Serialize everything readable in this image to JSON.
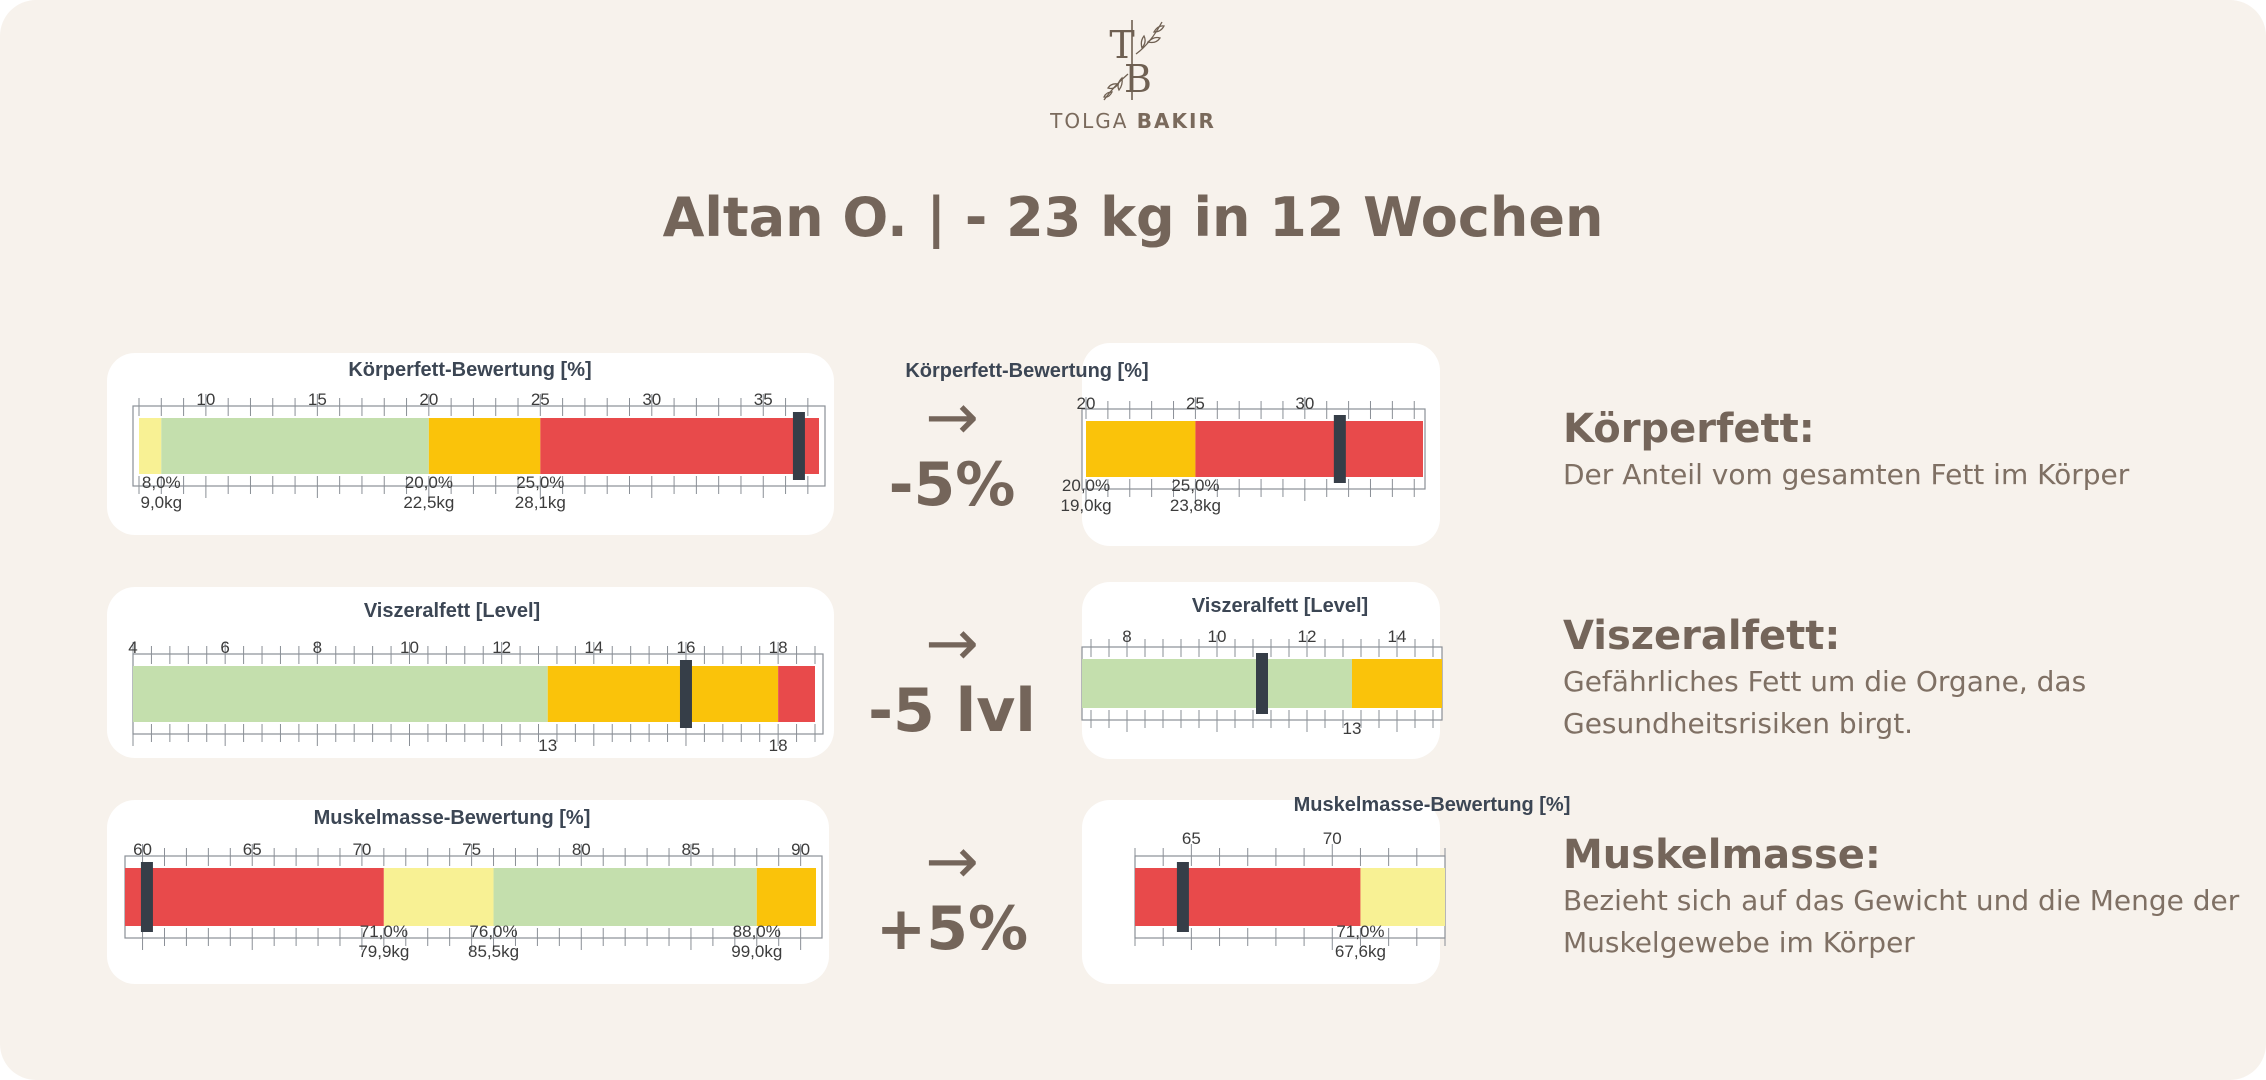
{
  "logo": {
    "monogram_1": "T",
    "monogram_2": "B",
    "name_first": "TOLGA",
    "name_last": "BAKIR"
  },
  "title": "Altan O. |  - 23 kg in 12 Wochen",
  "colors": {
    "background": "#f7f2ec",
    "text_brown": "#74655a",
    "light_yellow": "#f8f194",
    "light_green": "#c4dfad",
    "yellow": "#fac30a",
    "red": "#e84a4b",
    "marker": "#363e48"
  },
  "rows": [
    {
      "change": {
        "arrow": "→",
        "value": "-5%"
      },
      "description": {
        "heading": "Körperfett:",
        "text": "Der Anteil vom gesamten Fett im Körper"
      }
    },
    {
      "change": {
        "arrow": "→",
        "value": "-5 lvl"
      },
      "description": {
        "heading": "Viszeralfett:",
        "text": "Gefährliches Fett um die Organe, das Gesundheitsrisiken birgt."
      }
    },
    {
      "change": {
        "arrow": "→",
        "value": "+5%"
      },
      "description": {
        "heading": "Muskelmasse:",
        "text": "Bezieht sich auf das Gewicht und die Menge der Muskelgewebe im Körper"
      }
    }
  ],
  "chart_data": [
    {
      "type": "bar",
      "subtype": "range-gauge",
      "id": "koerperfett-before",
      "title": "Körperfett-Bewertung [%]",
      "xlim": [
        7,
        37.5
      ],
      "ticks": [
        10,
        15,
        20,
        25,
        30,
        35
      ],
      "segments": [
        {
          "from": 7,
          "to": 8,
          "color": "light_yellow"
        },
        {
          "from": 8,
          "to": 20,
          "color": "light_green"
        },
        {
          "from": 20,
          "to": 25,
          "color": "yellow"
        },
        {
          "from": 25,
          "to": 37.5,
          "color": "red"
        }
      ],
      "value": 36.6,
      "thresholds": [
        {
          "x": 8,
          "label1": "8,0%",
          "label2": "9,0kg"
        },
        {
          "x": 20,
          "label1": "20,0%",
          "label2": "22,5kg"
        },
        {
          "x": 25,
          "label1": "25,0%",
          "label2": "28,1kg"
        }
      ]
    },
    {
      "type": "bar",
      "subtype": "range-gauge",
      "id": "koerperfett-after",
      "title": "Körperfett-Bewertung [%]",
      "xlim": [
        20,
        35.4
      ],
      "ticks": [
        20,
        25,
        30
      ],
      "segments": [
        {
          "from": 20,
          "to": 25,
          "color": "yellow"
        },
        {
          "from": 25,
          "to": 35.4,
          "color": "red"
        }
      ],
      "value": 31.6,
      "thresholds": [
        {
          "x": 20,
          "label1": "20,0%",
          "label2": "19,0kg"
        },
        {
          "x": 25,
          "label1": "25,0%",
          "label2": "23,8kg"
        }
      ]
    },
    {
      "type": "bar",
      "subtype": "range-gauge",
      "id": "viszeralfett-before",
      "title": "Viszeralfett [Level]",
      "xlim": [
        4,
        18.8
      ],
      "ticks": [
        4,
        6,
        8,
        10,
        12,
        14,
        16,
        18
      ],
      "segments": [
        {
          "from": 4,
          "to": 13,
          "color": "light_green"
        },
        {
          "from": 13,
          "to": 18,
          "color": "yellow"
        },
        {
          "from": 18,
          "to": 18.8,
          "color": "red"
        }
      ],
      "value": 16,
      "thresholds": [
        {
          "x": 13,
          "label1": "13",
          "label2": ""
        },
        {
          "x": 18,
          "label1": "18",
          "label2": ""
        }
      ]
    },
    {
      "type": "bar",
      "subtype": "range-gauge",
      "id": "viszeralfett-after",
      "title": "Viszeralfett [Level]",
      "xlim": [
        7,
        15
      ],
      "ticks": [
        8,
        10,
        12,
        14
      ],
      "segments": [
        {
          "from": 7,
          "to": 13,
          "color": "light_green"
        },
        {
          "from": 13,
          "to": 15,
          "color": "yellow"
        }
      ],
      "value": 11,
      "thresholds": [
        {
          "x": 13,
          "label1": "13",
          "label2": ""
        }
      ]
    },
    {
      "type": "bar",
      "subtype": "range-gauge",
      "id": "muskelmasse-before",
      "title": "Muskelmasse-Bewertung [%]",
      "xlim": [
        59.2,
        90.7
      ],
      "ticks": [
        60,
        65,
        70,
        75,
        80,
        85,
        90
      ],
      "segments": [
        {
          "from": 59.2,
          "to": 71,
          "color": "red"
        },
        {
          "from": 71,
          "to": 76,
          "color": "light_yellow"
        },
        {
          "from": 76,
          "to": 88,
          "color": "light_green"
        },
        {
          "from": 88,
          "to": 90.7,
          "color": "yellow"
        }
      ],
      "value": 60.2,
      "thresholds": [
        {
          "x": 71,
          "label1": "71,0%",
          "label2": "79,9kg"
        },
        {
          "x": 76,
          "label1": "76,0%",
          "label2": "85,5kg"
        },
        {
          "x": 88,
          "label1": "88,0%",
          "label2": "99,0kg"
        }
      ]
    },
    {
      "type": "bar",
      "subtype": "range-gauge",
      "id": "muskelmasse-after",
      "title": "Muskelmasse-Bewertung [%]",
      "xlim": [
        63,
        74
      ],
      "ticks": [
        65,
        70
      ],
      "segments": [
        {
          "from": 63,
          "to": 71,
          "color": "red"
        },
        {
          "from": 71,
          "to": 74,
          "color": "light_yellow"
        }
      ],
      "value": 64.7,
      "thresholds": [
        {
          "x": 71,
          "label1": "71,0%",
          "label2": "67,6kg"
        }
      ]
    }
  ]
}
